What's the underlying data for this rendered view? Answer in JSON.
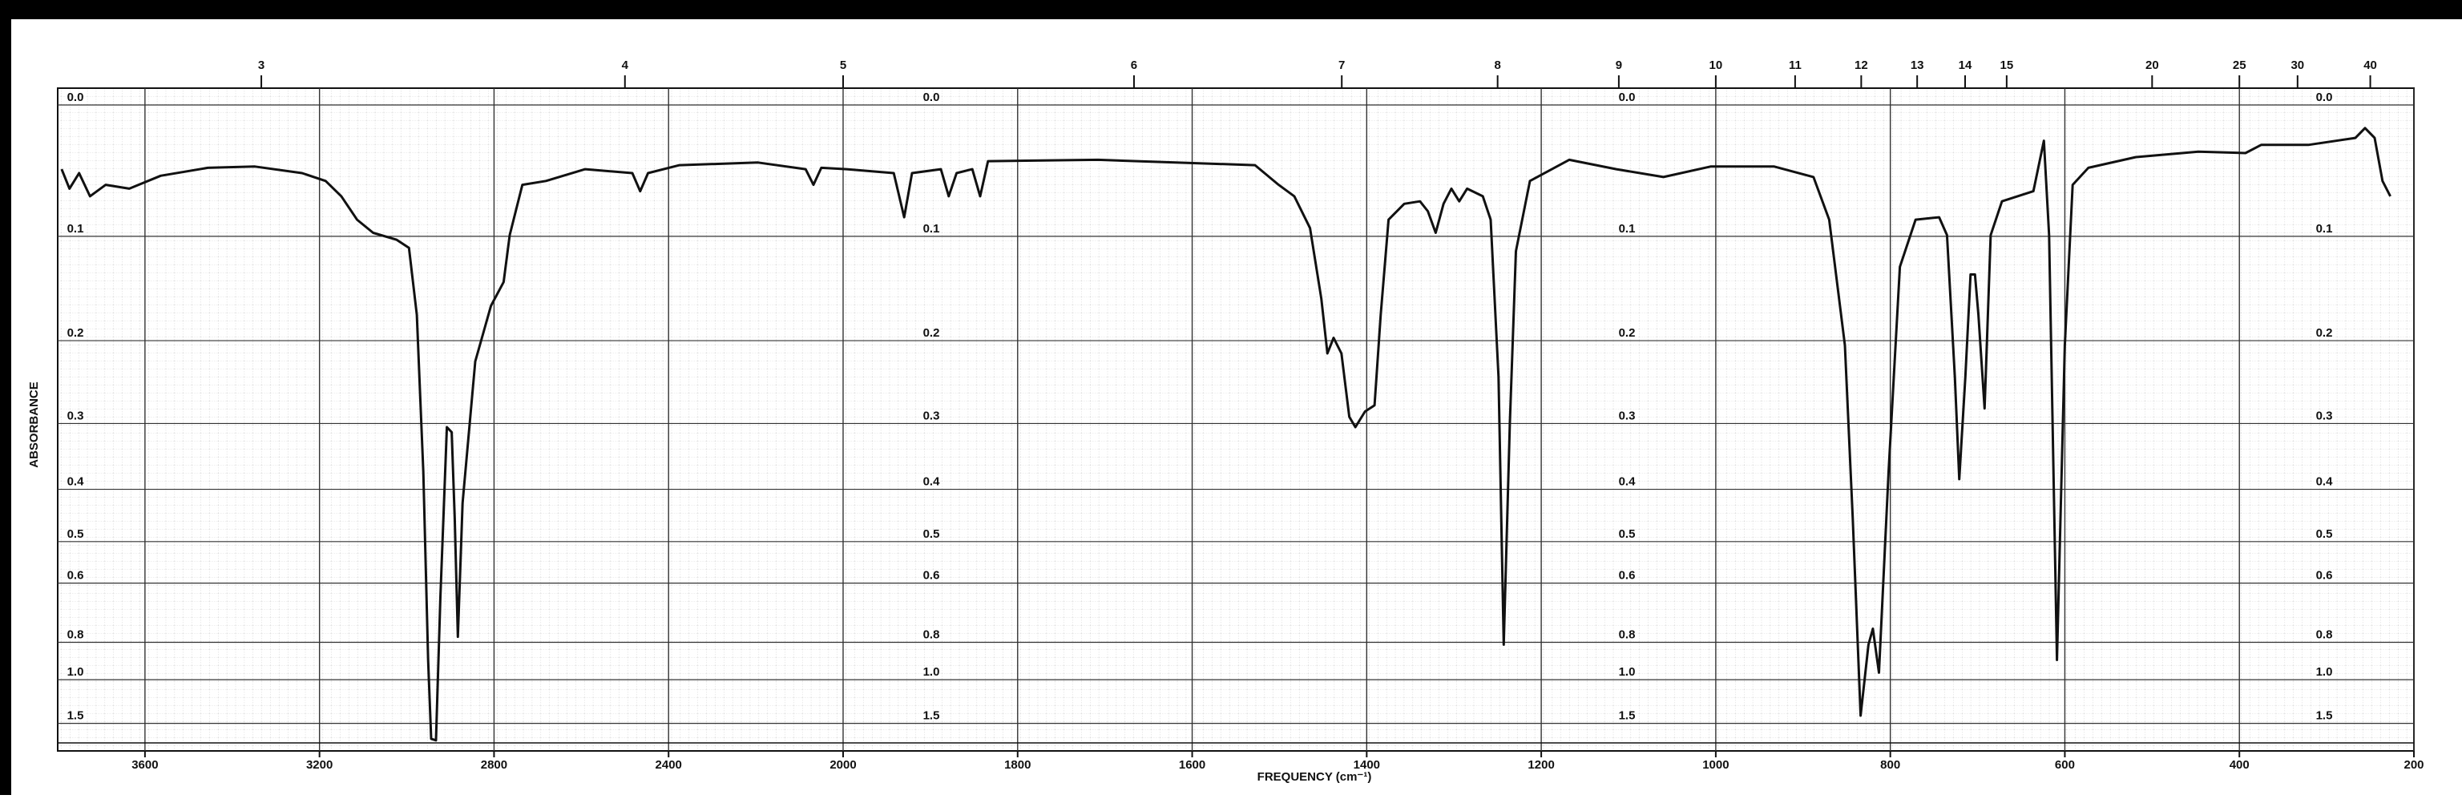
{
  "chart_data": {
    "type": "line",
    "x_label": "FREQUENCY (cm⁻¹)",
    "y_label": "ABSORBANCE",
    "xlim": [
      3800,
      200
    ],
    "x_scale_change": {
      "at": 2000,
      "ratio": 2
    },
    "xticks": [
      3600,
      3200,
      2800,
      2400,
      2000,
      1800,
      1600,
      1400,
      1200,
      1000,
      800,
      600,
      400,
      200
    ],
    "x2ticks": [
      3,
      4,
      5,
      6,
      7,
      8,
      9,
      10,
      11,
      12,
      13,
      14,
      15,
      20,
      25,
      30,
      40
    ],
    "ylim": [
      0,
      3
    ],
    "y_scale": "transmittance",
    "yticks": [
      {
        "value": 0,
        "label": "0.0"
      },
      0.1,
      0.2,
      0.3,
      0.4,
      0.5,
      0.6,
      0.8,
      {
        "value": 1,
        "label": "1.0"
      },
      1.5
    ],
    "grid": true,
    "color": "#111111",
    "x": [
      3791,
      3773,
      3751,
      3726,
      3690,
      3636,
      3564,
      3456,
      3348,
      3240,
      3186,
      3150,
      3114,
      3077,
      3023,
      2995,
      2977,
      2962,
      2951,
      2944,
      2933,
      2923,
      2908,
      2897,
      2890,
      2883,
      2872,
      2843,
      2807,
      2778,
      2764,
      2735,
      2681,
      2591,
      2483,
      2465,
      2447,
      2375,
      2195,
      2086,
      2068,
      2050,
      1996,
      1942,
      1930,
      1921,
      1888,
      1879,
      1870,
      1852,
      1843,
      1834,
      1708,
      1528,
      1501,
      1483,
      1465,
      1452,
      1445,
      1438,
      1429,
      1420,
      1413,
      1402,
      1391,
      1384,
      1375,
      1357,
      1339,
      1330,
      1321,
      1312,
      1303,
      1294,
      1285,
      1267,
      1258,
      1249,
      1243,
      1236,
      1229,
      1213,
      1168,
      1114,
      1060,
      1006,
      933,
      888,
      870,
      852,
      843,
      834,
      825,
      820,
      813,
      802,
      789,
      771,
      744,
      735,
      726,
      721,
      714,
      708,
      703,
      699,
      692,
      685,
      672,
      636,
      624,
      618,
      609,
      600,
      591,
      573,
      519,
      447,
      393,
      375,
      321,
      267,
      256,
      245,
      236,
      227
    ],
    "values": [
      0.046,
      0.061,
      0.049,
      0.067,
      0.058,
      0.061,
      0.051,
      0.045,
      0.044,
      0.049,
      0.055,
      0.067,
      0.086,
      0.097,
      0.103,
      0.11,
      0.173,
      0.371,
      0.883,
      2.13,
      2.3,
      0.64,
      0.305,
      0.312,
      0.453,
      0.777,
      0.424,
      0.223,
      0.164,
      0.141,
      0.099,
      0.058,
      0.055,
      0.046,
      0.049,
      0.063,
      0.049,
      0.043,
      0.041,
      0.046,
      0.058,
      0.045,
      0.046,
      0.049,
      0.084,
      0.049,
      0.046,
      0.067,
      0.049,
      0.046,
      0.067,
      0.04,
      0.039,
      0.043,
      0.058,
      0.067,
      0.093,
      0.157,
      0.214,
      0.197,
      0.214,
      0.291,
      0.305,
      0.284,
      0.276,
      0.173,
      0.086,
      0.073,
      0.071,
      0.079,
      0.097,
      0.073,
      0.061,
      0.071,
      0.061,
      0.067,
      0.086,
      0.241,
      0.81,
      0.301,
      0.113,
      0.055,
      0.039,
      0.046,
      0.052,
      0.044,
      0.044,
      0.052,
      0.086,
      0.205,
      0.453,
      1.36,
      0.81,
      0.745,
      0.955,
      0.371,
      0.127,
      0.086,
      0.084,
      0.099,
      0.241,
      0.383,
      0.241,
      0.134,
      0.134,
      0.173,
      0.28,
      0.099,
      0.071,
      0.063,
      0.025,
      0.099,
      0.883,
      0.205,
      0.058,
      0.045,
      0.037,
      0.033,
      0.034,
      0.028,
      0.028,
      0.023,
      0.016,
      0.023,
      0.055,
      0.067
    ]
  }
}
